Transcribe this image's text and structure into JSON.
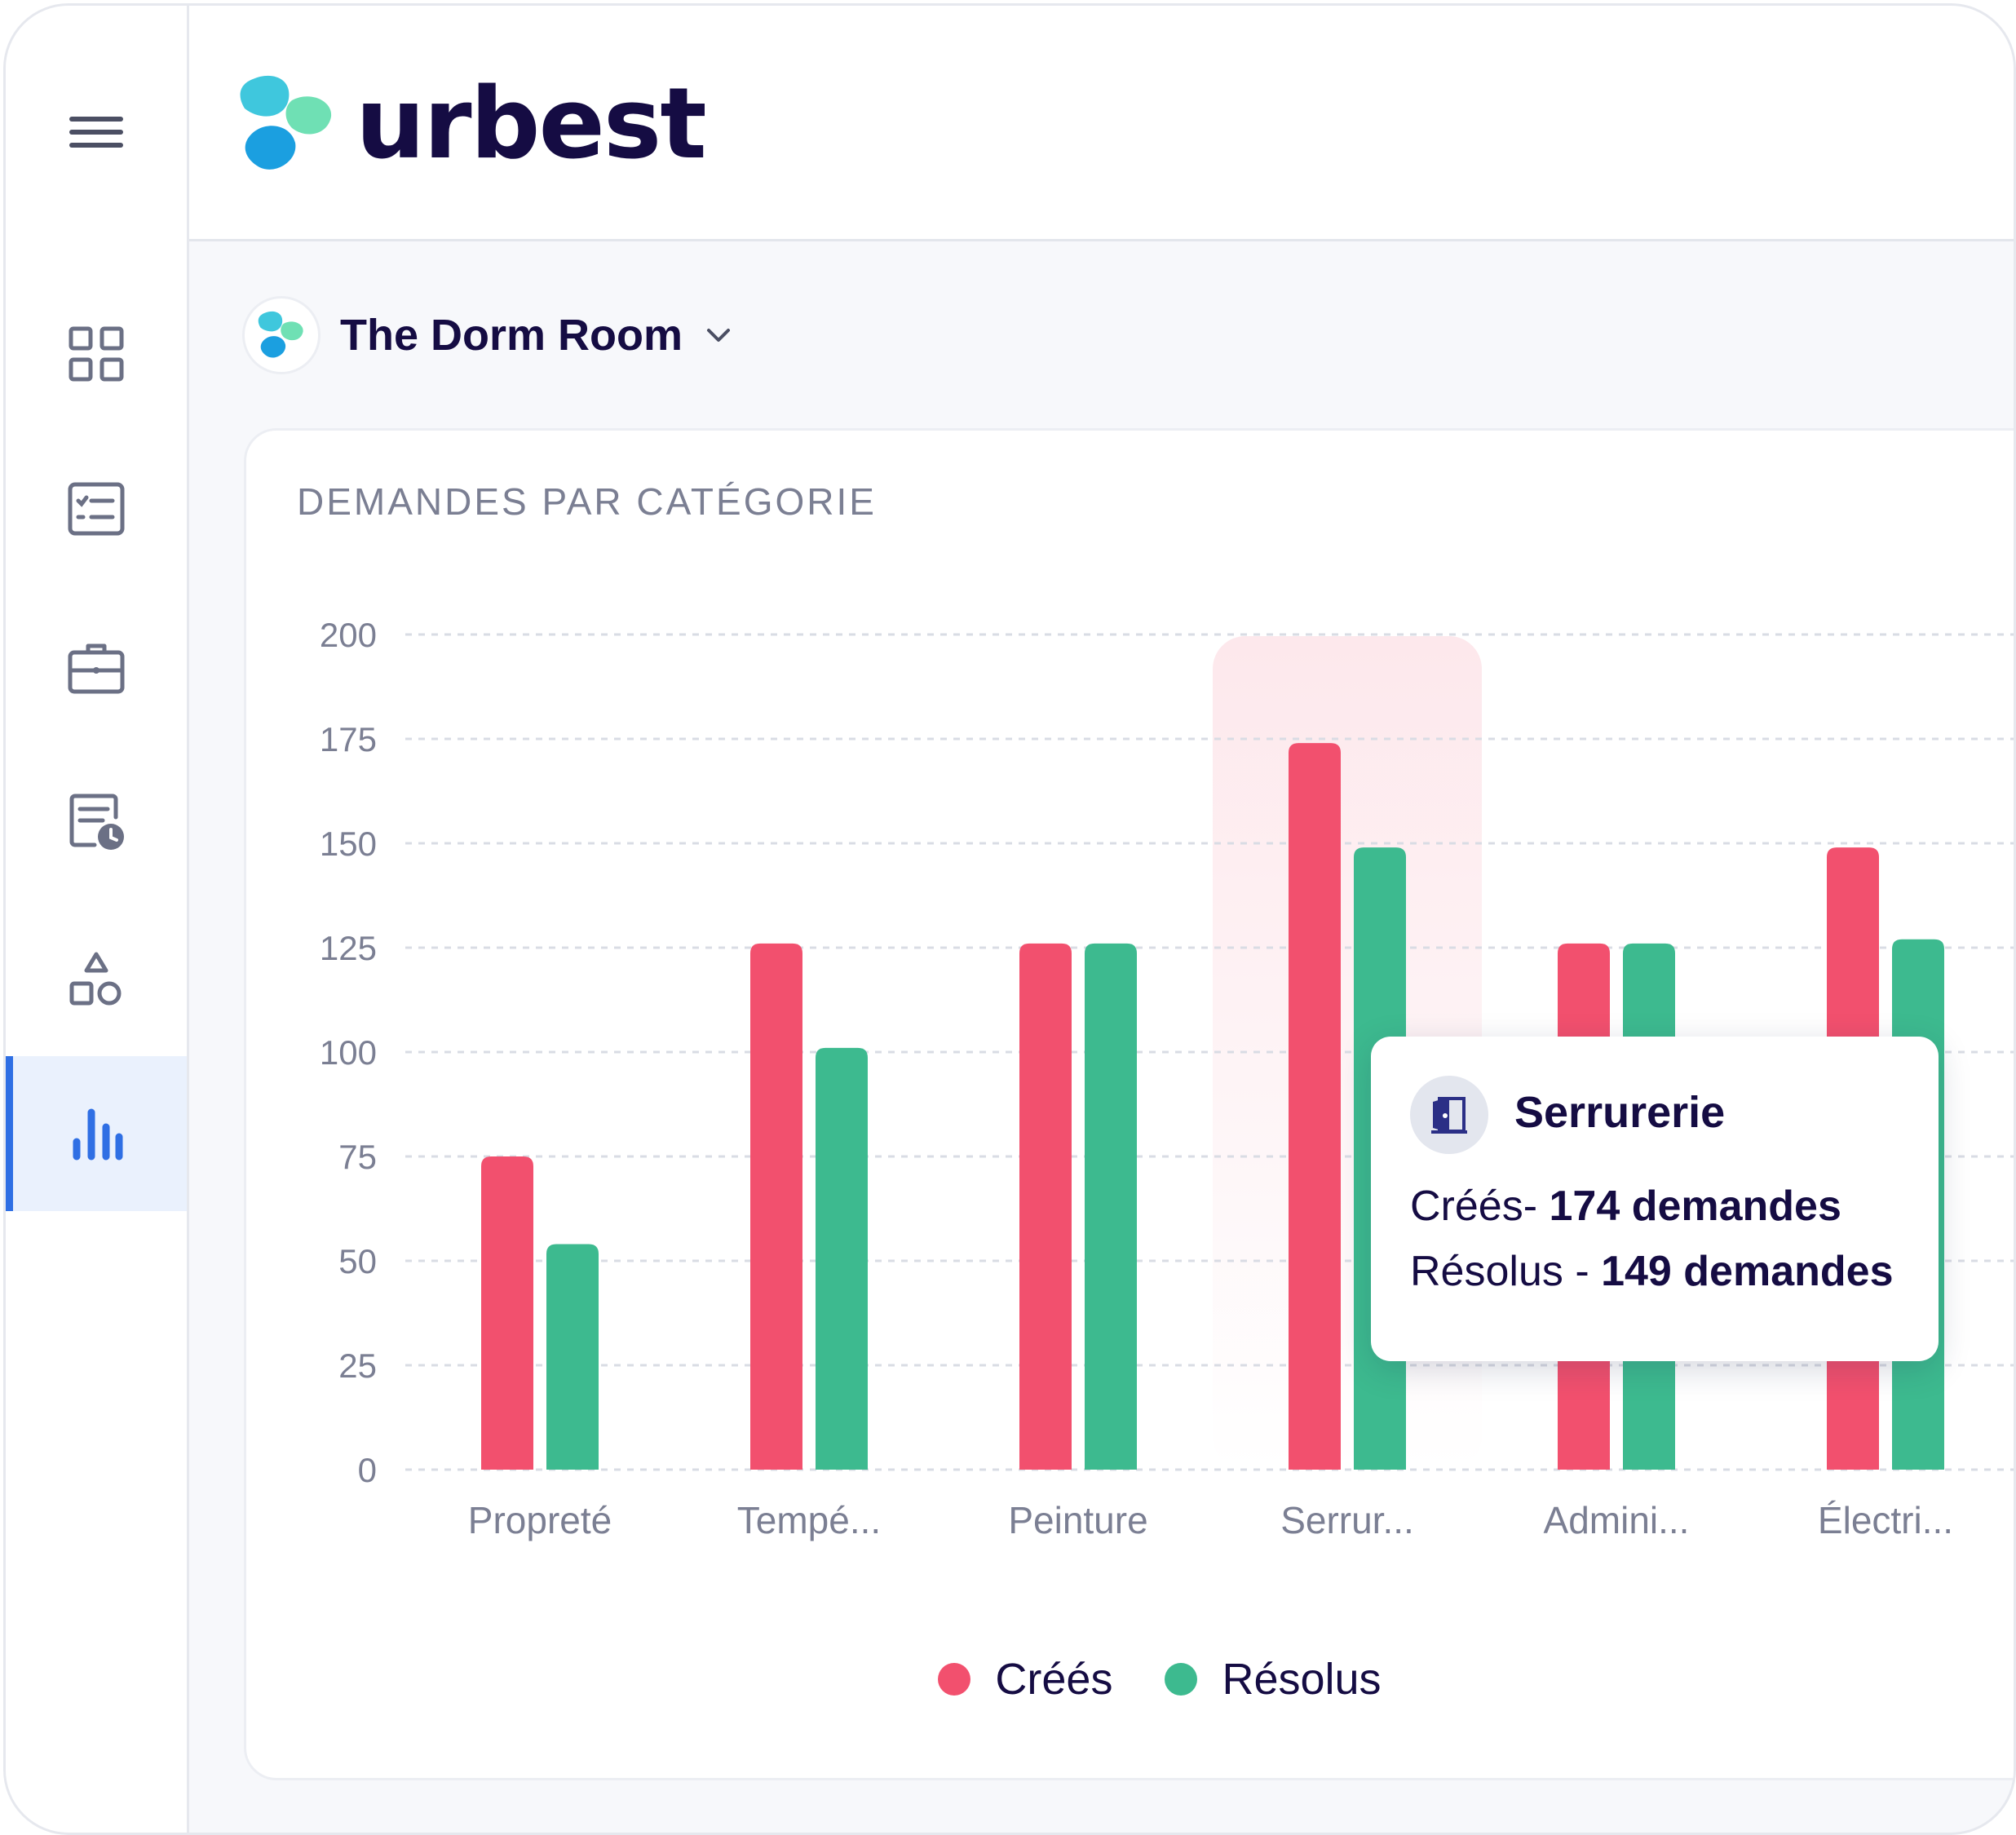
{
  "brand": {
    "name": "urbest"
  },
  "sidebar": {
    "items": [
      {
        "icon": "hamburger-menu-icon",
        "active": false
      },
      {
        "icon": "dashboard-grid-icon",
        "active": false
      },
      {
        "icon": "checklist-icon",
        "active": false
      },
      {
        "icon": "toolbox-icon",
        "active": false
      },
      {
        "icon": "schedule-document-icon",
        "active": false
      },
      {
        "icon": "shapes-icon",
        "active": false
      },
      {
        "icon": "bar-chart-icon",
        "active": true
      }
    ]
  },
  "workspace": {
    "name": "The Dorm Room",
    "icon": "chevron-down-icon"
  },
  "card": {
    "title": "DEMANDES PAR CATÉGORIE"
  },
  "tooltip": {
    "title": "Serrurerie",
    "icon": "door-lock-icon",
    "created_label": "Créés- ",
    "created_value": "174 demandes",
    "resolved_label": "Résolus - ",
    "resolved_value": "149 demandes"
  },
  "colors": {
    "created": "#f2506e",
    "resolved": "#3dba8f",
    "highlight": "#fde8ec"
  },
  "chart_data": {
    "type": "bar",
    "categories": [
      "Propreté",
      "Tempé...",
      "Peinture",
      "Serrur...",
      "Admini...",
      "Électri..."
    ],
    "series": [
      {
        "name": "Créés",
        "values": [
          75,
          126,
          126,
          174,
          126,
          149
        ]
      },
      {
        "name": "Résolus",
        "values": [
          54,
          101,
          126,
          149,
          126,
          127
        ]
      }
    ],
    "y_ticks": [
      "0",
      "25",
      "50",
      "75",
      "100",
      "125",
      "150",
      "175",
      "200"
    ],
    "ylim": [
      0,
      200
    ],
    "highlighted_category": "Serrur...",
    "grid": true,
    "legend": "bottom-center"
  }
}
